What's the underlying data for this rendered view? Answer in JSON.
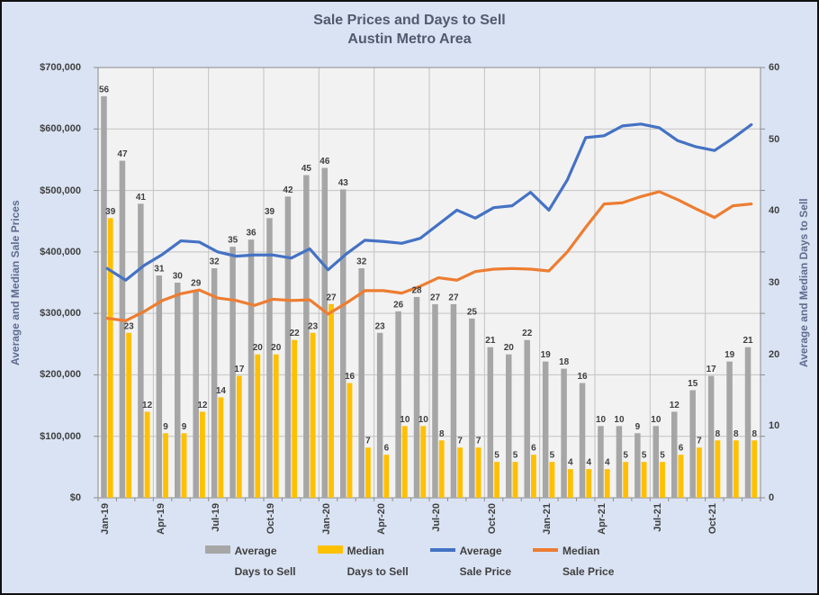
{
  "title": {
    "line1": "Sale Prices and Days to Sell",
    "line2": "Austin Metro Area"
  },
  "axes": {
    "left_title": "Average and Median Sale Prices",
    "right_title": "Average and Median Days to Sell",
    "left_ticks": [
      "$700,000",
      "$600,000",
      "$500,000",
      "$400,000",
      "$300,000",
      "$200,000",
      "$100,000",
      "$0"
    ],
    "right_ticks": [
      "60",
      "50",
      "40",
      "30",
      "20",
      "10",
      "0"
    ],
    "x_tick_labels": [
      "Jan-19",
      "Apr-19",
      "Jul-19",
      "Oct-19",
      "Jan-20",
      "Apr-20",
      "Jul-20",
      "Oct-20",
      "Jan-21",
      "Apr-21",
      "Jul-21",
      "Oct-21"
    ]
  },
  "legend": [
    {
      "label_line1": "Average",
      "label_line2": "Days to Sell",
      "swatch": "bar",
      "color": "#A6A6A6"
    },
    {
      "label_line1": "Median",
      "label_line2": "Days to Sell",
      "swatch": "bar",
      "color": "#FFC000"
    },
    {
      "label_line1": "Average",
      "label_line2": "Sale Price",
      "swatch": "line",
      "color": "#4472C4"
    },
    {
      "label_line1": "Median",
      "label_line2": "Sale Price",
      "swatch": "line",
      "color": "#ED7D31"
    }
  ],
  "chart_data": {
    "type": "combo-bar-line",
    "title": "Sale Prices and Days to Sell — Austin Metro Area",
    "categories": [
      "Jan-19",
      "Feb-19",
      "Mar-19",
      "Apr-19",
      "May-19",
      "Jun-19",
      "Jul-19",
      "Aug-19",
      "Sep-19",
      "Oct-19",
      "Nov-19",
      "Dec-19",
      "Jan-20",
      "Feb-20",
      "Mar-20",
      "Apr-20",
      "May-20",
      "Jun-20",
      "Jul-20",
      "Aug-20",
      "Sep-20",
      "Oct-20",
      "Nov-20",
      "Dec-20",
      "Jan-21",
      "Feb-21",
      "Mar-21",
      "Apr-21",
      "May-21",
      "Jun-21",
      "Jul-21",
      "Aug-21",
      "Sep-21",
      "Oct-21",
      "Nov-21",
      "Dec-21"
    ],
    "series": [
      {
        "name": "Average Days to Sell",
        "type": "bar",
        "axis": "right",
        "color": "#A6A6A6",
        "data_labels": true,
        "values": [
          56,
          47,
          41,
          31,
          30,
          29,
          32,
          35,
          36,
          39,
          42,
          45,
          46,
          43,
          32,
          23,
          26,
          28,
          27,
          27,
          25,
          21,
          20,
          22,
          19,
          18,
          16,
          10,
          10,
          9,
          10,
          12,
          15,
          17,
          19,
          21
        ]
      },
      {
        "name": "Median Days to Sell",
        "type": "bar",
        "axis": "right",
        "color": "#FFC000",
        "data_labels": true,
        "values": [
          39,
          23,
          12,
          9,
          9,
          12,
          14,
          17,
          20,
          20,
          22,
          23,
          27,
          16,
          7,
          6,
          10,
          10,
          8,
          7,
          7,
          5,
          5,
          6,
          5,
          4,
          4,
          4,
          5,
          5,
          5,
          6,
          7,
          8,
          8,
          8
        ]
      },
      {
        "name": "Average Sale Price",
        "type": "line",
        "axis": "left",
        "color": "#4472C4",
        "data_labels": false,
        "values": [
          373000,
          354000,
          378000,
          396000,
          418000,
          416000,
          400000,
          393000,
          395000,
          395000,
          390000,
          405000,
          371000,
          397000,
          419000,
          417000,
          414000,
          422000,
          445000,
          468000,
          455000,
          472000,
          475000,
          497000,
          468000,
          517000,
          586000,
          589000,
          605000,
          608000,
          602000,
          581000,
          571000,
          565000,
          585000,
          607000
        ]
      },
      {
        "name": "Median Sale Price",
        "type": "line",
        "axis": "left",
        "color": "#ED7D31",
        "data_labels": false,
        "values": [
          292000,
          288000,
          303000,
          321000,
          332000,
          338000,
          325000,
          321000,
          313000,
          323000,
          321000,
          322000,
          299000,
          317000,
          337000,
          337000,
          333000,
          344000,
          358000,
          354000,
          368000,
          372000,
          373000,
          372000,
          369000,
          400000,
          440000,
          478000,
          480000,
          490000,
          498000,
          485000,
          470000,
          456000,
          475000,
          478000
        ]
      }
    ],
    "left_axis": {
      "label": "Average and Median Sale Prices",
      "min": 0,
      "max": 700000,
      "step": 100000,
      "format": "$#,##0"
    },
    "right_axis": {
      "label": "Average and Median Days to Sell",
      "min": 0,
      "max": 60,
      "step": 10
    },
    "grid": true,
    "legend_position": "bottom",
    "x_label_rotation_deg": 90
  },
  "colors": {
    "background": "#DAE3F3",
    "plot_background": "#F2F2F2",
    "gridline": "#C3C3C3",
    "plot_border": "#8C8C8C",
    "tick_mark": "#8C8C8C",
    "bar_average_days": "#A6A6A6",
    "bar_median_days": "#FFC000",
    "line_average_price": "#4472C4",
    "line_median_price": "#ED7D31",
    "title_text": "#515A6E",
    "axis_title_text": "#5E6C8F",
    "tick_label_text": "#404040",
    "data_label_text": "#3F3F3F"
  }
}
